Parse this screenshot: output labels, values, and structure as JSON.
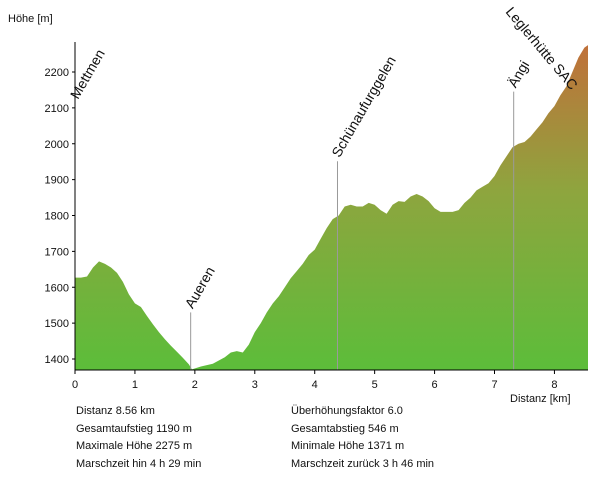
{
  "chart_data": {
    "type": "area",
    "ylabel": "Höhe [m]",
    "xlabel": "Distanz [km]",
    "xlim": [
      0,
      8.56
    ],
    "ylim": [
      1370,
      2280
    ],
    "xticks": [
      "0",
      "1",
      "2",
      "3",
      "4",
      "5",
      "6",
      "7",
      "8"
    ],
    "yticks": [
      "1400",
      "1500",
      "1600",
      "1700",
      "1800",
      "1900",
      "2000",
      "2100",
      "2200"
    ],
    "grid": false,
    "gradient": {
      "low": "#5cbd3a",
      "mid": "#8ea53e",
      "high": "#c0703a"
    },
    "waypoints": [
      {
        "name": "Mettmen",
        "x": 0.0
      },
      {
        "name": "Aueren",
        "x": 1.93
      },
      {
        "name": "Schünaufurggelen",
        "x": 4.38
      },
      {
        "name": "Ängi",
        "x": 7.32
      },
      {
        "name": "Leglerhütte SAC",
        "x": 8.56
      }
    ],
    "profile": [
      [
        0.0,
        1627
      ],
      [
        0.1,
        1627
      ],
      [
        0.2,
        1630
      ],
      [
        0.3,
        1655
      ],
      [
        0.4,
        1672
      ],
      [
        0.5,
        1665
      ],
      [
        0.6,
        1655
      ],
      [
        0.7,
        1640
      ],
      [
        0.8,
        1615
      ],
      [
        0.9,
        1580
      ],
      [
        1.0,
        1555
      ],
      [
        1.1,
        1545
      ],
      [
        1.2,
        1520
      ],
      [
        1.3,
        1497
      ],
      [
        1.4,
        1475
      ],
      [
        1.5,
        1455
      ],
      [
        1.6,
        1437
      ],
      [
        1.7,
        1420
      ],
      [
        1.8,
        1403
      ],
      [
        1.9,
        1385
      ],
      [
        1.95,
        1371
      ],
      [
        2.1,
        1379
      ],
      [
        2.3,
        1387
      ],
      [
        2.5,
        1405
      ],
      [
        2.6,
        1418
      ],
      [
        2.7,
        1422
      ],
      [
        2.8,
        1418
      ],
      [
        2.9,
        1440
      ],
      [
        3.0,
        1475
      ],
      [
        3.1,
        1500
      ],
      [
        3.2,
        1530
      ],
      [
        3.3,
        1555
      ],
      [
        3.4,
        1575
      ],
      [
        3.5,
        1600
      ],
      [
        3.6,
        1625
      ],
      [
        3.7,
        1645
      ],
      [
        3.8,
        1665
      ],
      [
        3.9,
        1690
      ],
      [
        4.0,
        1705
      ],
      [
        4.1,
        1735
      ],
      [
        4.2,
        1765
      ],
      [
        4.3,
        1790
      ],
      [
        4.4,
        1800
      ],
      [
        4.5,
        1825
      ],
      [
        4.6,
        1830
      ],
      [
        4.7,
        1825
      ],
      [
        4.8,
        1825
      ],
      [
        4.9,
        1835
      ],
      [
        5.0,
        1830
      ],
      [
        5.1,
        1815
      ],
      [
        5.2,
        1805
      ],
      [
        5.3,
        1830
      ],
      [
        5.4,
        1840
      ],
      [
        5.5,
        1838
      ],
      [
        5.6,
        1853
      ],
      [
        5.7,
        1860
      ],
      [
        5.8,
        1853
      ],
      [
        5.9,
        1840
      ],
      [
        6.0,
        1820
      ],
      [
        6.1,
        1810
      ],
      [
        6.2,
        1810
      ],
      [
        6.3,
        1810
      ],
      [
        6.4,
        1815
      ],
      [
        6.5,
        1835
      ],
      [
        6.6,
        1850
      ],
      [
        6.7,
        1870
      ],
      [
        6.8,
        1880
      ],
      [
        6.9,
        1890
      ],
      [
        7.0,
        1910
      ],
      [
        7.1,
        1940
      ],
      [
        7.2,
        1965
      ],
      [
        7.3,
        1990
      ],
      [
        7.4,
        2000
      ],
      [
        7.5,
        2005
      ],
      [
        7.6,
        2020
      ],
      [
        7.7,
        2040
      ],
      [
        7.8,
        2060
      ],
      [
        7.9,
        2085
      ],
      [
        8.0,
        2105
      ],
      [
        8.1,
        2135
      ],
      [
        8.2,
        2160
      ],
      [
        8.3,
        2200
      ],
      [
        8.4,
        2240
      ],
      [
        8.5,
        2268
      ],
      [
        8.56,
        2275
      ]
    ]
  },
  "stats": {
    "left": [
      "Distanz 8.56 km",
      "Gesamtaufstieg 1190 m",
      "Maximale Höhe 2275 m",
      "Marschzeit hin 4 h 29 min"
    ],
    "right": [
      "Überhöhungsfaktor 6.0",
      "Gesamtabstieg 546 m",
      "Minimale Höhe 1371 m",
      "Marschzeit zurück 3 h 46 min"
    ]
  }
}
